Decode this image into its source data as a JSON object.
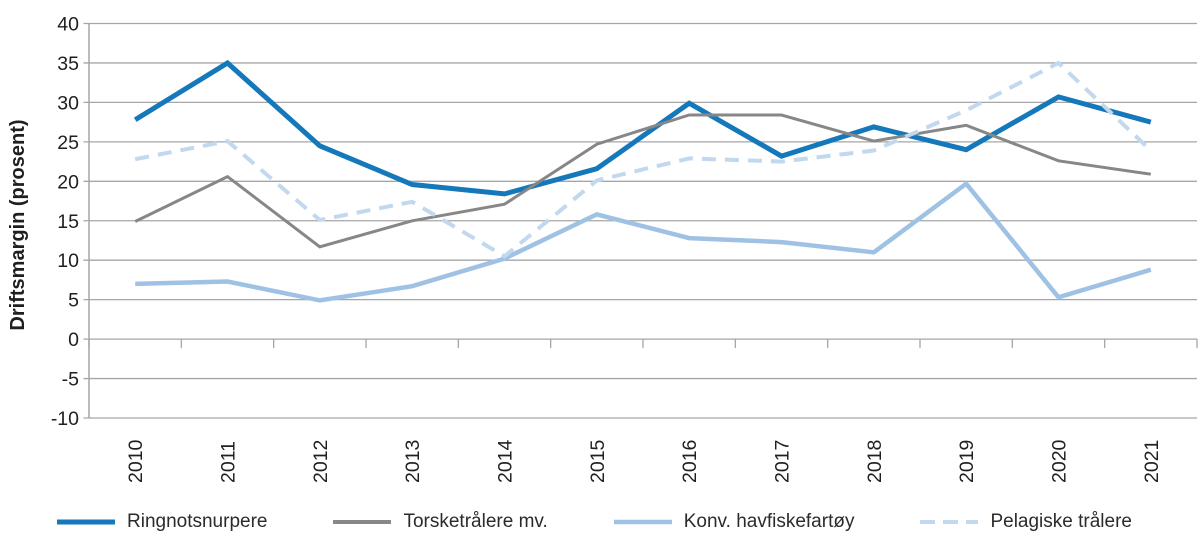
{
  "chart_data": {
    "type": "line",
    "title": "",
    "xlabel": "",
    "ylabel": "Driftsmargin (prosent)",
    "ylim": [
      -10,
      40
    ],
    "yticks": [
      40,
      35,
      30,
      25,
      20,
      15,
      10,
      5,
      0,
      -5,
      -10
    ],
    "grid": true,
    "legend_position": "bottom",
    "categories": [
      "2010",
      "2011",
      "2012",
      "2013",
      "2014",
      "2015",
      "2016",
      "2017",
      "2018",
      "2019",
      "2020",
      "2021"
    ],
    "series": [
      {
        "name": "Ringnotsnurpere",
        "color": "#1578bb",
        "style": "solid",
        "stroke_width": 5,
        "values": [
          27.8,
          35.0,
          24.5,
          19.6,
          18.4,
          21.6,
          29.9,
          23.2,
          26.9,
          24.0,
          30.7,
          27.5
        ]
      },
      {
        "name": "Torsketrålere mv.",
        "color": "#878787",
        "style": "solid",
        "stroke_width": 3,
        "values": [
          14.9,
          20.6,
          11.7,
          15.0,
          17.1,
          24.7,
          28.4,
          28.4,
          25.1,
          27.1,
          22.6,
          20.9
        ]
      },
      {
        "name": "Konv. havfiskefartøy",
        "color": "#9fc2e4",
        "style": "solid",
        "stroke_width": 4.5,
        "values": [
          7.0,
          7.3,
          4.9,
          6.7,
          10.2,
          15.8,
          12.8,
          12.3,
          11.0,
          19.7,
          5.3,
          8.8
        ]
      },
      {
        "name": "Pelagiske trålere",
        "color": "#c2d8ee",
        "style": "dashed",
        "stroke_width": 4,
        "values": [
          22.8,
          25.1,
          15.1,
          17.4,
          10.5,
          20.1,
          22.9,
          22.5,
          23.9,
          29.0,
          35.0,
          23.9
        ]
      }
    ],
    "gridline_color": "#a6a6a6"
  }
}
